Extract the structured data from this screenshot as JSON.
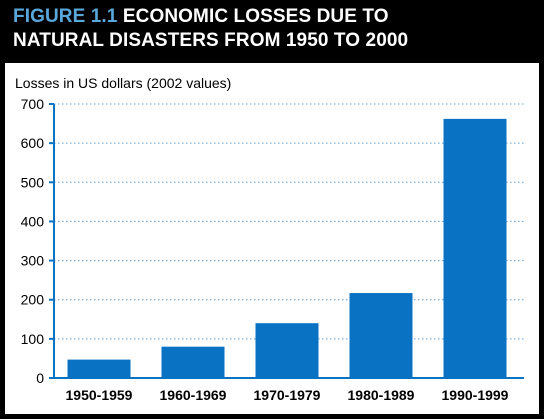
{
  "figure": {
    "label": "FIGURE 1.1",
    "title_line_1_rest": "ECONOMIC LOSSES DUE TO",
    "title_line_2": "NATURAL DISASTERS FROM 1950 TO 2000"
  },
  "colors": {
    "background": "#000000",
    "panel": "#ffffff",
    "bar": "#0a72c3",
    "grid": "#5a9fd6",
    "axis": "#0a72c3",
    "label_accent": "#5aa7dc"
  },
  "chart_data": {
    "type": "bar",
    "ylabel": "Losses in US dollars (2002 values)",
    "xlabel": "",
    "ylim": [
      0,
      700
    ],
    "yticks": [
      0,
      100,
      200,
      300,
      400,
      500,
      600,
      700
    ],
    "grid": true,
    "grid_style": "dotted",
    "categories": [
      "1950-1959",
      "1960-1969",
      "1970-1979",
      "1980-1989",
      "1990-1999"
    ],
    "values": [
      47,
      80,
      140,
      217,
      662
    ]
  }
}
